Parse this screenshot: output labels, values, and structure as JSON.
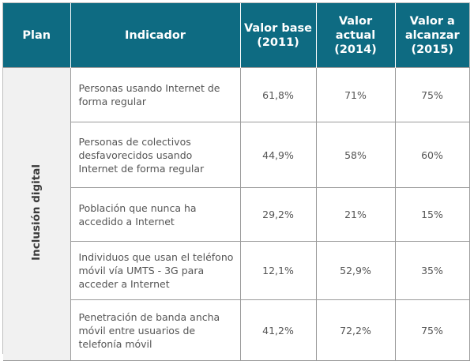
{
  "header": {
    "plan": "Plan",
    "indicator": "Indicador",
    "base_line1": "Valor base",
    "base_line2": "(2011)",
    "actual_line1": "Valor actual",
    "actual_line2": "(2014)",
    "target_line1": "Valor a",
    "target_line2": "alcanzar",
    "target_line3": "(2015)"
  },
  "plan_name": "Inclusión digital",
  "rows": [
    {
      "indicator": "Personas usando Internet de forma regular",
      "base": "61,8%",
      "actual": "71%",
      "target": "75%"
    },
    {
      "indicator": "Personas de colectivos desfavorecidos usando Internet de forma regular",
      "base": "44,9%",
      "actual": "58%",
      "target": "60%"
    },
    {
      "indicator": "Población que nunca ha accedido a Internet",
      "base": "29,2%",
      "actual": "21%",
      "target": "15%"
    },
    {
      "indicator": "Individuos que usan el teléfono móvil vía UMTS - 3G para acceder a Internet",
      "base": "12,1%",
      "actual": "52,9%",
      "target": "35%"
    },
    {
      "indicator": "Penetración de banda ancha móvil entre usuarios de telefonía móvil",
      "base": "41,2%",
      "actual": "72,2%",
      "target": "75%"
    }
  ]
}
